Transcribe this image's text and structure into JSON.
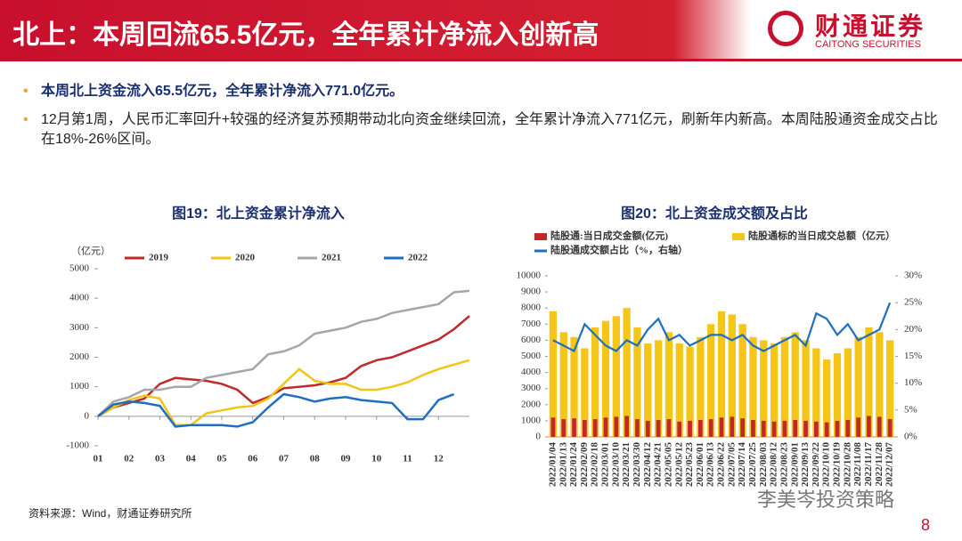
{
  "header": {
    "title": "北上：本周回流65.5亿元，全年累计净流入创新高",
    "logo": "财通证券",
    "logo_en": "CAITONG SECURITIES"
  },
  "bullets": [
    "本周北上资金流入65.5亿元，全年累计净流入771.0亿元。",
    "12月第1周，人民币汇率回升+较强的经济复苏预期带动北向资金继续回流，全年累计净流入771亿元，刷新年内新高。本周陆股通资金成交占比在18%-26%区间。"
  ],
  "source": "资料来源：Wind，财通证券研究所",
  "watermark": "李美岑投资策略",
  "page_number": "8",
  "chart_data": [
    {
      "type": "line",
      "title": "图19：北上资金累计净流入",
      "y_label": "（亿元）",
      "x": [
        1,
        1.5,
        2,
        2.5,
        3,
        3.5,
        4,
        4.5,
        5,
        5.5,
        6,
        6.5,
        7,
        7.5,
        8,
        8.5,
        9,
        9.5,
        10,
        10.5,
        11,
        11.5,
        12,
        12.5,
        13
      ],
      "xlim": [
        1,
        13
      ],
      "xticks": [
        {
          "value": 1,
          "label": "01"
        },
        {
          "value": 2,
          "label": "02"
        },
        {
          "value": 3,
          "label": "03"
        },
        {
          "value": 4,
          "label": "04"
        },
        {
          "value": 5,
          "label": "05"
        },
        {
          "value": 6,
          "label": "06"
        },
        {
          "value": 7,
          "label": "07"
        },
        {
          "value": 8,
          "label": "08"
        },
        {
          "value": 9,
          "label": "09"
        },
        {
          "value": 10,
          "label": "10"
        },
        {
          "value": 11,
          "label": "11"
        },
        {
          "value": 12,
          "label": "12"
        }
      ],
      "ylim": [
        -1000,
        5000
      ],
      "yticks": [
        -1000,
        0,
        1000,
        2000,
        3000,
        4000,
        5000
      ],
      "series": [
        {
          "name": "2019",
          "color": "#c0282a",
          "values": [
            0,
            300,
            450,
            600,
            1100,
            1300,
            1250,
            1200,
            1100,
            900,
            450,
            650,
            950,
            1000,
            1050,
            1150,
            1300,
            1700,
            1900,
            2000,
            2200,
            2400,
            2600,
            2950,
            3400
          ]
        },
        {
          "name": "2020",
          "color": "#f2c414",
          "values": [
            0,
            300,
            550,
            700,
            600,
            -300,
            -300,
            100,
            200,
            300,
            350,
            600,
            1100,
            1600,
            1200,
            1100,
            1100,
            900,
            900,
            1000,
            1150,
            1400,
            1600,
            1750,
            1900
          ]
        },
        {
          "name": "2021",
          "color": "#a6a6a6",
          "values": [
            0,
            500,
            650,
            900,
            900,
            1000,
            1000,
            1300,
            1400,
            1500,
            1600,
            2100,
            2200,
            2400,
            2800,
            2900,
            3000,
            3200,
            3300,
            3500,
            3600,
            3700,
            3800,
            4200,
            4250
          ]
        },
        {
          "name": "2022",
          "color": "#1f6fc1",
          "values": [
            0,
            400,
            500,
            450,
            350,
            -350,
            -300,
            -300,
            -300,
            -350,
            -200,
            300,
            750,
            650,
            500,
            600,
            650,
            550,
            500,
            450,
            -100,
            -100,
            550,
            750,
            null
          ]
        }
      ]
    },
    {
      "type": "bar",
      "title": "图20：北上资金成交额及占比",
      "categories": [
        "2022/01/04",
        "2022/01/13",
        "2022/01/24",
        "2022/02/09",
        "2022/02/18",
        "2022/03/01",
        "2022/03/10",
        "2022/03/21",
        "2022/03/30",
        "2022/04/12",
        "2022/04/21",
        "2022/05/05",
        "2022/05/12",
        "2022/05/23",
        "2022/06/01",
        "2022/06/13",
        "2022/06/22",
        "2022/07/05",
        "2022/07/14",
        "2022/07/25",
        "2022/08/03",
        "2022/08/12",
        "2022/08/23",
        "2022/09/01",
        "2022/09/13",
        "2022/09/22",
        "2022/10/10",
        "2022/10/19",
        "2022/10/28",
        "2022/11/08",
        "2022/11/17",
        "2022/11/28",
        "2022/12/07"
      ],
      "ylim": [
        0,
        10000
      ],
      "yticks": [
        0,
        1000,
        2000,
        3000,
        4000,
        5000,
        6000,
        7000,
        8000,
        9000,
        10000
      ],
      "y2lim": [
        0,
        30
      ],
      "y2ticks": [
        {
          "value": 0,
          "label": "0%"
        },
        {
          "value": 5,
          "label": "5%"
        },
        {
          "value": 10,
          "label": "10%"
        },
        {
          "value": 15,
          "label": "15%"
        },
        {
          "value": 20,
          "label": "20%"
        },
        {
          "value": 25,
          "label": "25%"
        },
        {
          "value": 30,
          "label": "30%"
        }
      ],
      "series": [
        {
          "name": "陆股通标的当日成交总额（亿元）",
          "color": "#f5c518",
          "values": [
            7800,
            6500,
            6200,
            5500,
            6800,
            7200,
            7500,
            8000,
            6800,
            5800,
            6000,
            6500,
            5800,
            5600,
            6200,
            7000,
            7800,
            7600,
            7000,
            6200,
            6000,
            5800,
            6200,
            6500,
            6000,
            5500,
            4800,
            5200,
            5500,
            6200,
            6800,
            6500,
            6000
          ]
        },
        {
          "name": "陆股通:当日成交金额(亿元)",
          "color": "#c0282a",
          "values": [
            1200,
            1100,
            1150,
            1050,
            1100,
            1200,
            1250,
            1300,
            1100,
            1000,
            1050,
            1100,
            950,
            1000,
            1050,
            1100,
            1200,
            1250,
            1150,
            1050,
            1000,
            950,
            1000,
            1050,
            1000,
            950,
            900,
            1000,
            1050,
            1200,
            1300,
            1250,
            1100
          ]
        },
        {
          "name": "陆股通成交额占比（%，右轴）",
          "color": "#1f6fc1",
          "type": "line",
          "axis": "y2",
          "values": [
            18,
            17,
            16,
            21,
            19,
            17,
            16,
            18,
            17,
            20,
            22,
            18,
            19,
            17,
            18,
            19,
            19,
            18,
            19,
            17,
            16,
            17,
            18,
            19,
            17,
            23,
            22,
            19,
            21,
            18,
            19,
            20,
            25
          ]
        }
      ]
    }
  ]
}
